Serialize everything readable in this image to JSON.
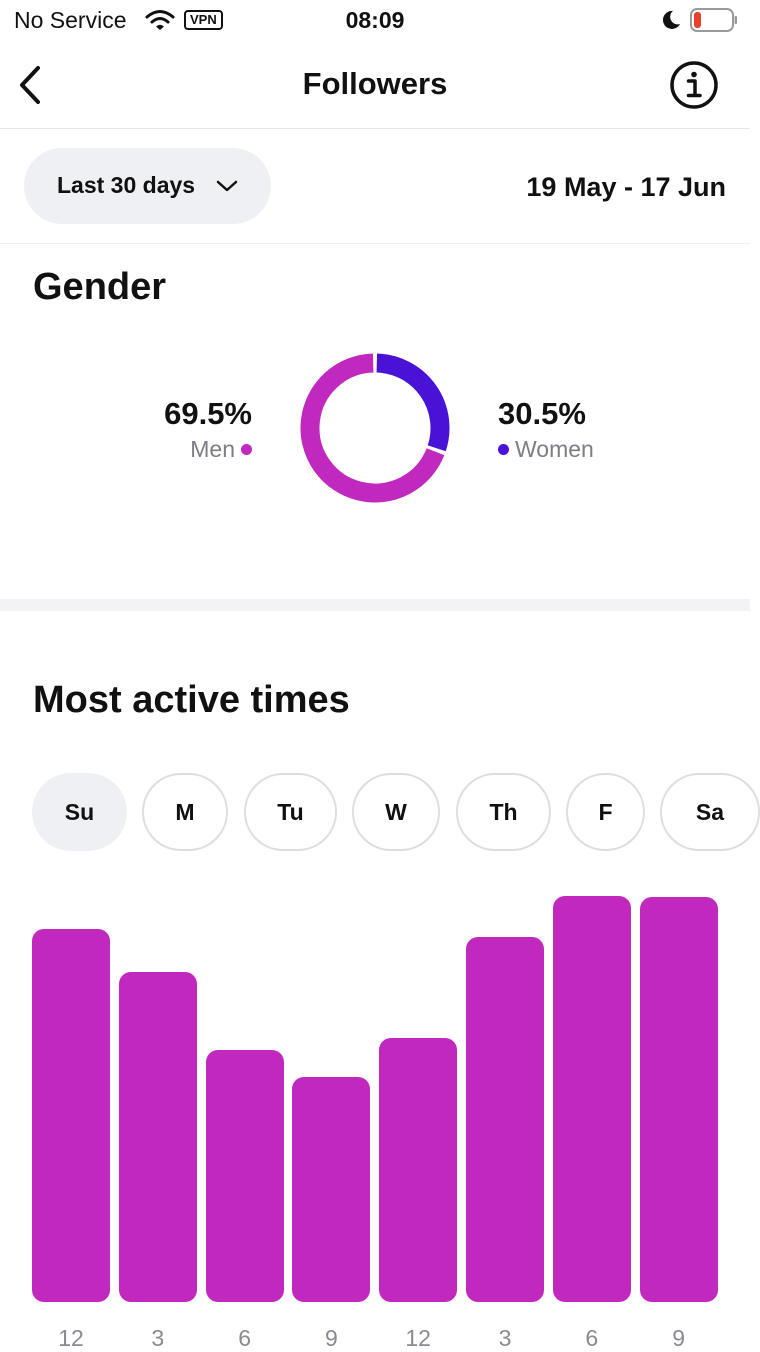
{
  "status_bar": {
    "carrier": "No Service",
    "vpn": "VPN",
    "time": "08:09",
    "icons": [
      "wifi-icon",
      "moon-icon",
      "battery-icon"
    ]
  },
  "nav": {
    "title": "Followers",
    "icons": [
      "back-icon",
      "info-icon"
    ]
  },
  "filter": {
    "range_label": "Last 30 days",
    "date_range": "19 May - 17 Jun"
  },
  "gender": {
    "title": "Gender",
    "men": {
      "percent": "69.5%",
      "label": "Men",
      "value": 69.5,
      "color": "#c028be"
    },
    "women": {
      "percent": "30.5%",
      "label": "Women",
      "value": 30.5,
      "color": "#4a12d6"
    }
  },
  "active_times": {
    "title": "Most active times",
    "days": [
      "Su",
      "M",
      "Tu",
      "W",
      "Th",
      "F",
      "Sa"
    ],
    "selected_day": "Su",
    "bar_color": "#c028be"
  },
  "chart_data": {
    "type": "bar",
    "categories": [
      "",
      "",
      "",
      "",
      "",
      "",
      "",
      ""
    ],
    "values": [
      100,
      88.5,
      67.5,
      60.5,
      70.8,
      97.8,
      109,
      108.7
    ],
    "tick_labels": [
      "12",
      "3",
      "6",
      "9",
      "12",
      "3",
      "6",
      "9"
    ],
    "ylim": [
      0,
      110
    ]
  }
}
